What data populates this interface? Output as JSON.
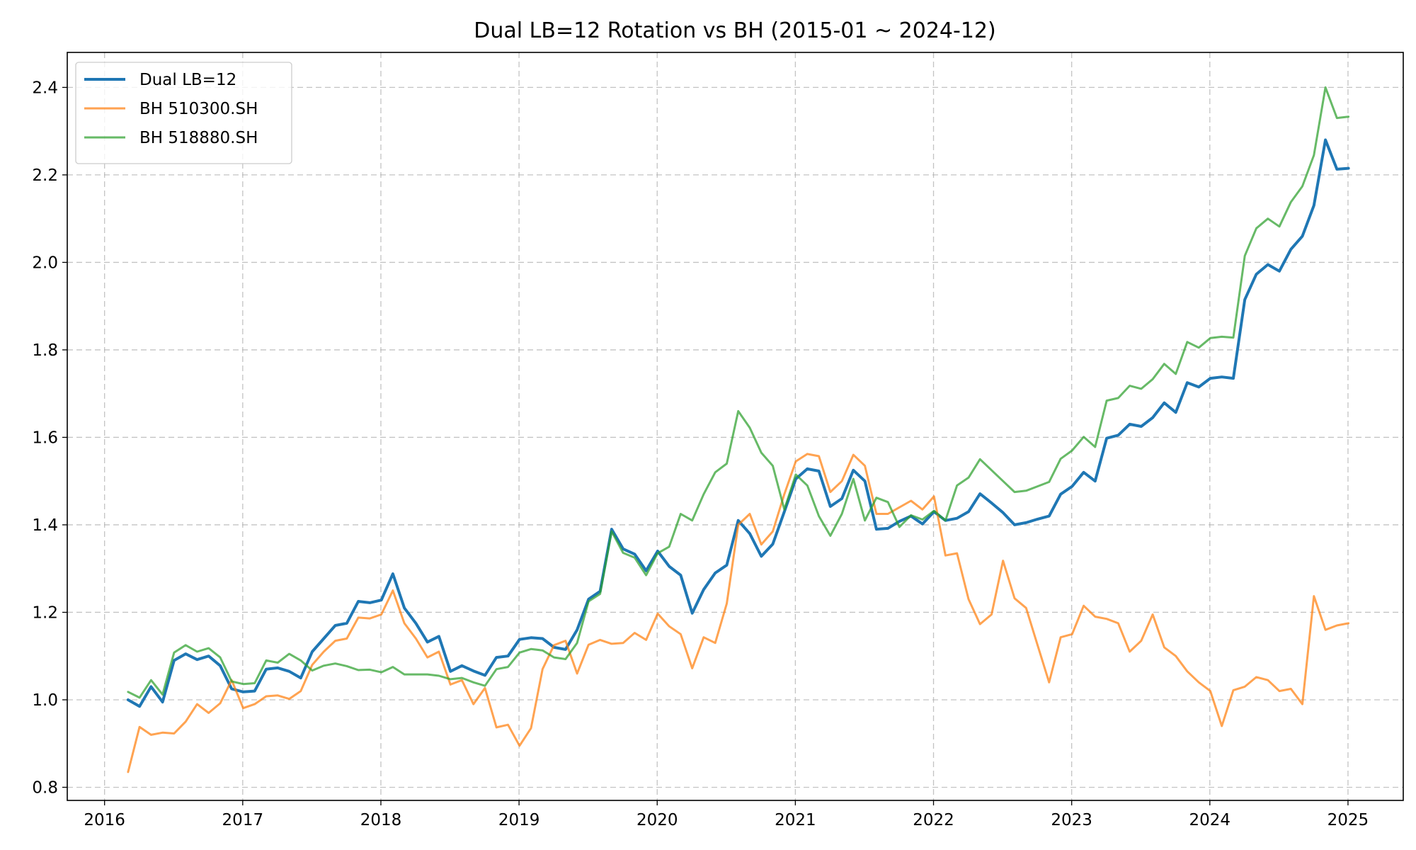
{
  "chart_data": {
    "type": "line",
    "title": "Dual LB=12 Rotation vs BH (2015-01 ~ 2024-12)",
    "xlabel": "",
    "ylabel": "",
    "xlim": [
      2015.73,
      2025.4
    ],
    "ylim": [
      0.77,
      2.48
    ],
    "x_ticks": [
      "2016",
      "2017",
      "2018",
      "2019",
      "2020",
      "2021",
      "2022",
      "2023",
      "2024",
      "2025"
    ],
    "y_ticks": [
      "0.8",
      "1.0",
      "1.2",
      "1.4",
      "1.6",
      "1.8",
      "2.0",
      "2.2",
      "2.4"
    ],
    "grid": true,
    "legend_position": "top-left",
    "x_start": 2016.17,
    "x_step_months": 1,
    "series": [
      {
        "name": "Dual LB=12",
        "color": "#1f77b4",
        "width": 4,
        "values": [
          1.0,
          0.985,
          1.03,
          0.995,
          1.09,
          1.105,
          1.092,
          1.1,
          1.078,
          1.025,
          1.018,
          1.02,
          1.07,
          1.073,
          1.065,
          1.05,
          1.11,
          1.14,
          1.17,
          1.175,
          1.225,
          1.222,
          1.228,
          1.288,
          1.21,
          1.175,
          1.132,
          1.145,
          1.065,
          1.078,
          1.066,
          1.056,
          1.097,
          1.1,
          1.138,
          1.142,
          1.14,
          1.12,
          1.115,
          1.16,
          1.23,
          1.248,
          1.39,
          1.345,
          1.333,
          1.295,
          1.34,
          1.305,
          1.285,
          1.198,
          1.252,
          1.29,
          1.308,
          1.41,
          1.38,
          1.328,
          1.356,
          1.43,
          1.505,
          1.528,
          1.523,
          1.442,
          1.46,
          1.525,
          1.5,
          1.39,
          1.392,
          1.408,
          1.42,
          1.402,
          1.43,
          1.41,
          1.415,
          1.43,
          1.471,
          1.45,
          1.428,
          1.4,
          1.405,
          1.413,
          1.42,
          1.47,
          1.488,
          1.52,
          1.5,
          1.598,
          1.605,
          1.63,
          1.625,
          1.645,
          1.679,
          1.657,
          1.725,
          1.715,
          1.735,
          1.738,
          1.735,
          1.915,
          1.973,
          1.995,
          1.98,
          2.03,
          2.06,
          2.13,
          2.28,
          2.213,
          2.215
        ]
      },
      {
        "name": "BH 510300.SH",
        "color": "#ff7f0e",
        "width": 3,
        "values": [
          0.835,
          0.938,
          0.92,
          0.925,
          0.923,
          0.95,
          0.99,
          0.97,
          0.992,
          1.045,
          0.981,
          0.99,
          1.008,
          1.01,
          1.002,
          1.02,
          1.08,
          1.11,
          1.135,
          1.14,
          1.188,
          1.186,
          1.195,
          1.25,
          1.175,
          1.14,
          1.097,
          1.11,
          1.035,
          1.045,
          0.99,
          1.027,
          0.937,
          0.943,
          0.895,
          0.935,
          1.07,
          1.125,
          1.135,
          1.06,
          1.126,
          1.137,
          1.128,
          1.13,
          1.153,
          1.137,
          1.197,
          1.168,
          1.15,
          1.072,
          1.143,
          1.13,
          1.22,
          1.4,
          1.425,
          1.355,
          1.385,
          1.47,
          1.545,
          1.562,
          1.557,
          1.475,
          1.5,
          1.56,
          1.535,
          1.425,
          1.425,
          1.44,
          1.455,
          1.435,
          1.465,
          1.33,
          1.335,
          1.23,
          1.173,
          1.195,
          1.318,
          1.232,
          1.21,
          1.125,
          1.04,
          1.143,
          1.15,
          1.215,
          1.19,
          1.185,
          1.175,
          1.11,
          1.135,
          1.195,
          1.12,
          1.1,
          1.065,
          1.04,
          1.02,
          0.94,
          1.022,
          1.03,
          1.052,
          1.045,
          1.02,
          1.025,
          0.99,
          1.237,
          1.16,
          1.17,
          1.175
        ]
      },
      {
        "name": "BH 518880.SH",
        "color": "#2ca02c",
        "width": 3,
        "values": [
          1.018,
          1.005,
          1.045,
          1.012,
          1.108,
          1.125,
          1.11,
          1.118,
          1.097,
          1.042,
          1.036,
          1.038,
          1.09,
          1.085,
          1.105,
          1.09,
          1.067,
          1.078,
          1.083,
          1.077,
          1.068,
          1.069,
          1.063,
          1.075,
          1.058,
          1.058,
          1.058,
          1.055,
          1.047,
          1.05,
          1.04,
          1.032,
          1.07,
          1.075,
          1.108,
          1.116,
          1.113,
          1.097,
          1.093,
          1.13,
          1.225,
          1.242,
          1.385,
          1.336,
          1.325,
          1.285,
          1.335,
          1.35,
          1.425,
          1.41,
          1.47,
          1.52,
          1.54,
          1.66,
          1.622,
          1.565,
          1.535,
          1.435,
          1.515,
          1.49,
          1.42,
          1.375,
          1.425,
          1.505,
          1.41,
          1.462,
          1.452,
          1.395,
          1.422,
          1.412,
          1.432,
          1.41,
          1.49,
          1.508,
          1.55,
          1.525,
          1.5,
          1.475,
          1.478,
          1.488,
          1.498,
          1.551,
          1.57,
          1.601,
          1.578,
          1.684,
          1.69,
          1.718,
          1.711,
          1.733,
          1.768,
          1.745,
          1.818,
          1.805,
          1.827,
          1.83,
          1.828,
          2.015,
          2.078,
          2.1,
          2.082,
          2.138,
          2.174,
          2.245,
          2.4,
          2.33,
          2.333
        ]
      }
    ]
  }
}
